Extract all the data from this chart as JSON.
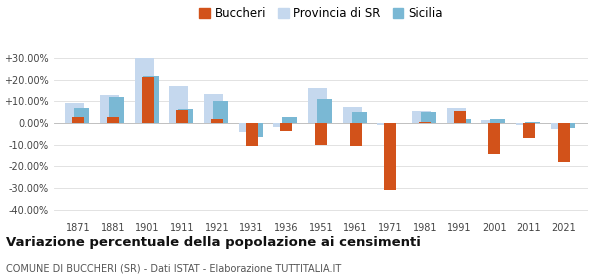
{
  "years": [
    1871,
    1881,
    1901,
    1911,
    1921,
    1931,
    1936,
    1951,
    1961,
    1971,
    1981,
    1991,
    2001,
    2011,
    2021
  ],
  "buccheri": [
    2.5,
    2.5,
    21.0,
    6.0,
    2.0,
    -10.5,
    -3.5,
    -10.0,
    -10.5,
    -31.0,
    0.5,
    5.5,
    -14.5,
    -7.0,
    -18.0
  ],
  "provincia_sr": [
    9.0,
    13.0,
    30.0,
    17.0,
    13.5,
    -4.0,
    -2.0,
    16.0,
    7.5,
    -1.0,
    5.5,
    7.0,
    1.5,
    -1.0,
    -3.0
  ],
  "sicilia": [
    7.0,
    12.0,
    21.5,
    6.5,
    10.0,
    -6.5,
    2.5,
    11.0,
    5.0,
    0.0,
    5.0,
    2.0,
    2.0,
    0.5,
    -2.5
  ],
  "color_buccheri": "#d2521a",
  "color_provincia": "#c5d8ee",
  "color_sicilia": "#7ab8d4",
  "title": "Variazione percentuale della popolazione ai censimenti",
  "subtitle": "COMUNE DI BUCCHERI (SR) - Dati ISTAT - Elaborazione TUTTITALIA.IT",
  "ylim": [
    -44,
    36
  ],
  "yticks": [
    -40,
    -30,
    -20,
    -10,
    0,
    10,
    20,
    30
  ],
  "legend_labels": [
    "Buccheri",
    "Provincia di SR",
    "Sicilia"
  ],
  "background_color": "#ffffff",
  "grid_color": "#dddddd"
}
